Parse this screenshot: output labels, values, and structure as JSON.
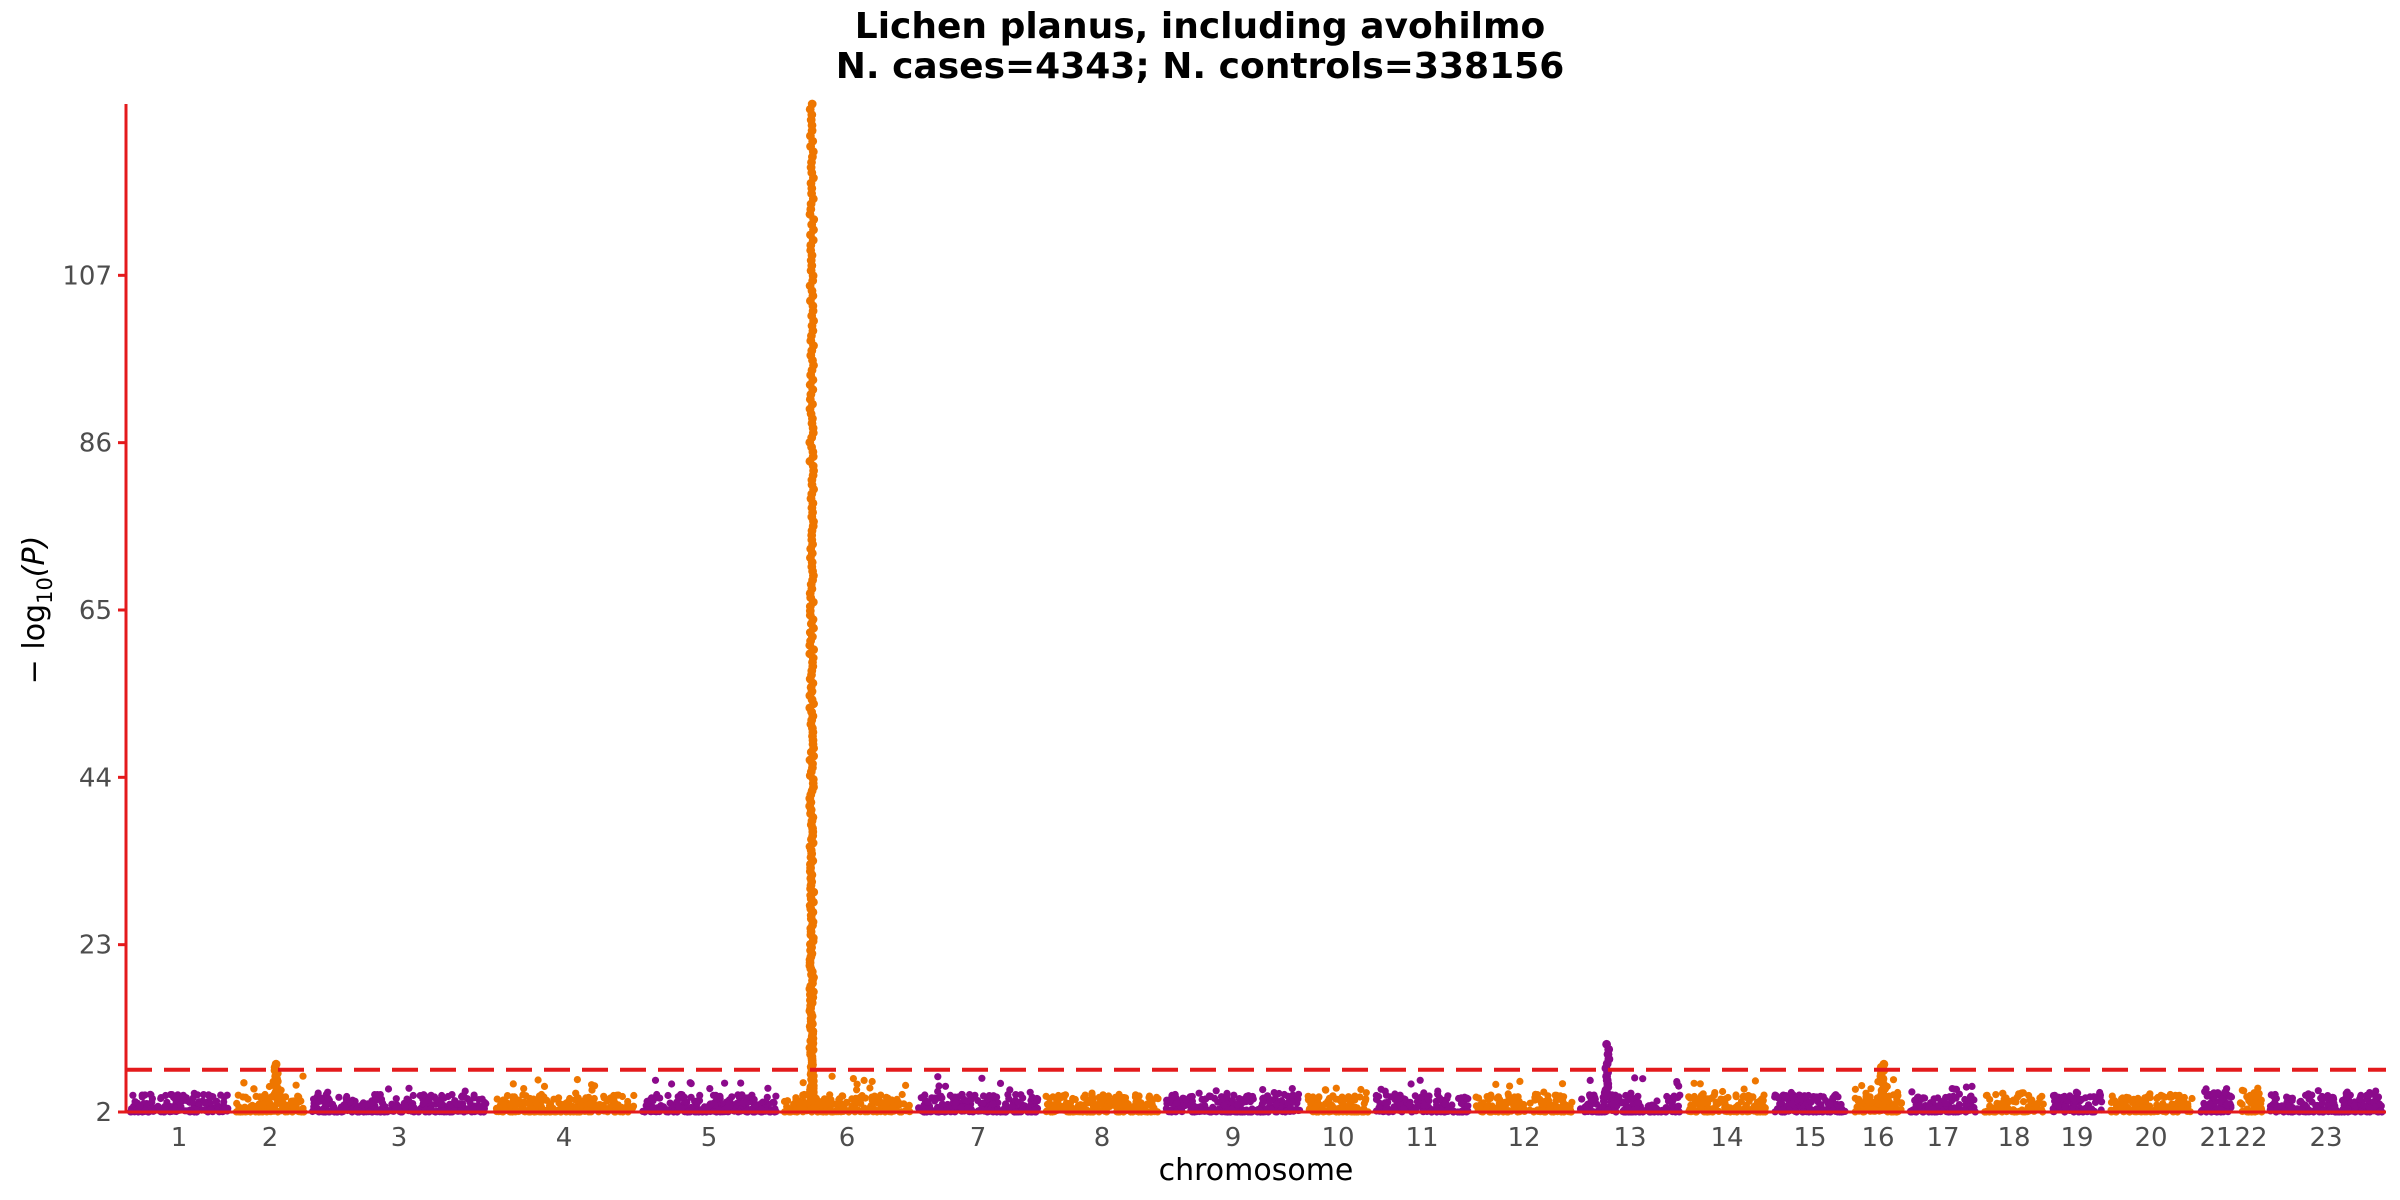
{
  "chart_data": {
    "type": "scatter",
    "subtype": "manhattan",
    "title": "Lichen planus, including avohilmo",
    "subtitle": "N. cases=4343; N. controls=338156",
    "xlabel": "chromosome",
    "ylabel": "−log10(P)",
    "ylabel_main": "− log",
    "ylabel_sub": "10",
    "ylabel_tail": "(P)",
    "ylim": [
      2,
      128.5
    ],
    "yticks": [
      2,
      23,
      44,
      65,
      86,
      107
    ],
    "significance_threshold": 7.3,
    "threshold_line_color": "#e41a1c",
    "axis_color": "#e41a1c",
    "colors": [
      "#8b0a8b",
      "#ee7600"
    ],
    "chromosomes": [
      {
        "label": "1",
        "color": "#8b0a8b",
        "max": 4.5
      },
      {
        "label": "2",
        "color": "#ee7600",
        "max": 8.0
      },
      {
        "label": "3",
        "color": "#8b0a8b",
        "max": 5.0
      },
      {
        "label": "4",
        "color": "#ee7600",
        "max": 6.5
      },
      {
        "label": "5",
        "color": "#8b0a8b",
        "max": 6.0
      },
      {
        "label": "6",
        "color": "#ee7600",
        "max": 128.5
      },
      {
        "label": "7",
        "color": "#8b0a8b",
        "max": 6.5
      },
      {
        "label": "8",
        "color": "#ee7600",
        "max": 4.5
      },
      {
        "label": "9",
        "color": "#8b0a8b",
        "max": 5.0
      },
      {
        "label": "10",
        "color": "#ee7600",
        "max": 5.0
      },
      {
        "label": "11",
        "color": "#8b0a8b",
        "max": 6.0
      },
      {
        "label": "12",
        "color": "#ee7600",
        "max": 6.0
      },
      {
        "label": "13",
        "color": "#8b0a8b",
        "max": 10.5
      },
      {
        "label": "14",
        "color": "#ee7600",
        "max": 6.0
      },
      {
        "label": "15",
        "color": "#8b0a8b",
        "max": 4.5
      },
      {
        "label": "16",
        "color": "#ee7600",
        "max": 8.0
      },
      {
        "label": "17",
        "color": "#8b0a8b",
        "max": 5.5
      },
      {
        "label": "18",
        "color": "#ee7600",
        "max": 4.5
      },
      {
        "label": "19",
        "color": "#8b0a8b",
        "max": 4.5
      },
      {
        "label": "20",
        "color": "#ee7600",
        "max": 4.5
      },
      {
        "label": "21",
        "color": "#8b0a8b",
        "max": 5.0
      },
      {
        "label": "22",
        "color": "#ee7600",
        "max": 5.0
      },
      {
        "label": "23",
        "color": "#8b0a8b",
        "max": 5.0
      }
    ]
  }
}
